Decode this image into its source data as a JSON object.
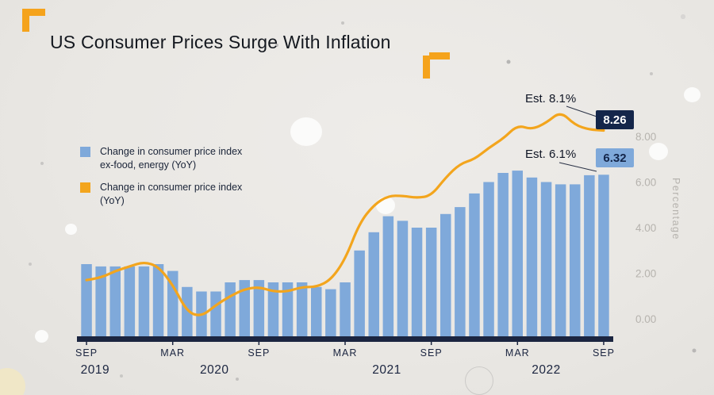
{
  "title": "US Consumer Prices Surge With Inflation",
  "legend": {
    "items": [
      {
        "line1": "Change in consumer price index",
        "line2": "ex-food, energy (YoY)",
        "color": "#7fa9da"
      },
      {
        "line1": "Change in consumer price index",
        "line2": "(YoY)",
        "color": "#f3a51d"
      }
    ]
  },
  "annotations": {
    "est_headline": "Est. 8.1%",
    "actual_headline": "8.26",
    "est_core": "Est. 6.1%",
    "actual_core": "6.32",
    "badge_headline_color": "#14264a",
    "badge_core_color": "#7fa9da"
  },
  "y_axis": {
    "title": "Percentage",
    "ticks": [
      {
        "label": "8.00",
        "value": 8
      },
      {
        "label": "6.00",
        "value": 6
      },
      {
        "label": "4.00",
        "value": 4
      },
      {
        "label": "2.00",
        "value": 2
      },
      {
        "label": "0.00",
        "value": 0
      }
    ]
  },
  "x_axis": {
    "month_ticks": [
      {
        "label": "SEP",
        "index": 0
      },
      {
        "label": "MAR",
        "index": 6
      },
      {
        "label": "SEP",
        "index": 12
      },
      {
        "label": "MAR",
        "index": 18
      },
      {
        "label": "SEP",
        "index": 24
      },
      {
        "label": "MAR",
        "index": 30
      },
      {
        "label": "SEP",
        "index": 36
      }
    ],
    "year_labels": [
      {
        "label": "2019",
        "index": 0.6
      },
      {
        "label": "2020",
        "index": 8.9
      },
      {
        "label": "2021",
        "index": 20.9
      },
      {
        "label": "2022",
        "index": 32.0
      }
    ]
  },
  "chart_data": {
    "type": "bar+line",
    "title": "US Consumer Prices Surge With Inflation",
    "ylabel": "Percentage",
    "ylim": [
      0,
      9.5
    ],
    "y_ticks": [
      0,
      2,
      4,
      6,
      8
    ],
    "x": [
      "2019-09",
      "2019-10",
      "2019-11",
      "2019-12",
      "2020-01",
      "2020-02",
      "2020-03",
      "2020-04",
      "2020-05",
      "2020-06",
      "2020-07",
      "2020-08",
      "2020-09",
      "2020-10",
      "2020-11",
      "2020-12",
      "2021-01",
      "2021-02",
      "2021-03",
      "2021-04",
      "2021-05",
      "2021-06",
      "2021-07",
      "2021-08",
      "2021-09",
      "2021-10",
      "2021-11",
      "2021-12",
      "2022-01",
      "2022-02",
      "2022-03",
      "2022-04",
      "2022-05",
      "2022-06",
      "2022-07",
      "2022-08",
      "2022-09"
    ],
    "series": [
      {
        "name": "Change in consumer price index ex-food, energy (YoY)",
        "kind": "bar",
        "color": "#7fa9da",
        "values": [
          2.4,
          2.3,
          2.3,
          2.3,
          2.3,
          2.4,
          2.1,
          1.4,
          1.2,
          1.2,
          1.6,
          1.7,
          1.7,
          1.6,
          1.6,
          1.6,
          1.4,
          1.3,
          1.6,
          3.0,
          3.8,
          4.5,
          4.3,
          4.0,
          4.0,
          4.6,
          4.9,
          5.5,
          6.0,
          6.4,
          6.5,
          6.2,
          6.0,
          5.9,
          5.9,
          6.3,
          6.32
        ]
      },
      {
        "name": "Change in consumer price index (YoY)",
        "kind": "line",
        "color": "#f3a51d",
        "values": [
          1.7,
          1.8,
          2.1,
          2.3,
          2.5,
          2.3,
          1.5,
          0.3,
          0.1,
          0.6,
          1.0,
          1.3,
          1.4,
          1.2,
          1.2,
          1.4,
          1.4,
          1.7,
          2.6,
          4.2,
          5.0,
          5.4,
          5.4,
          5.3,
          5.4,
          6.2,
          6.8,
          7.0,
          7.5,
          7.9,
          8.5,
          8.3,
          8.6,
          9.1,
          8.5,
          8.3,
          8.26
        ]
      }
    ],
    "legend_position": "left",
    "grid": false
  }
}
